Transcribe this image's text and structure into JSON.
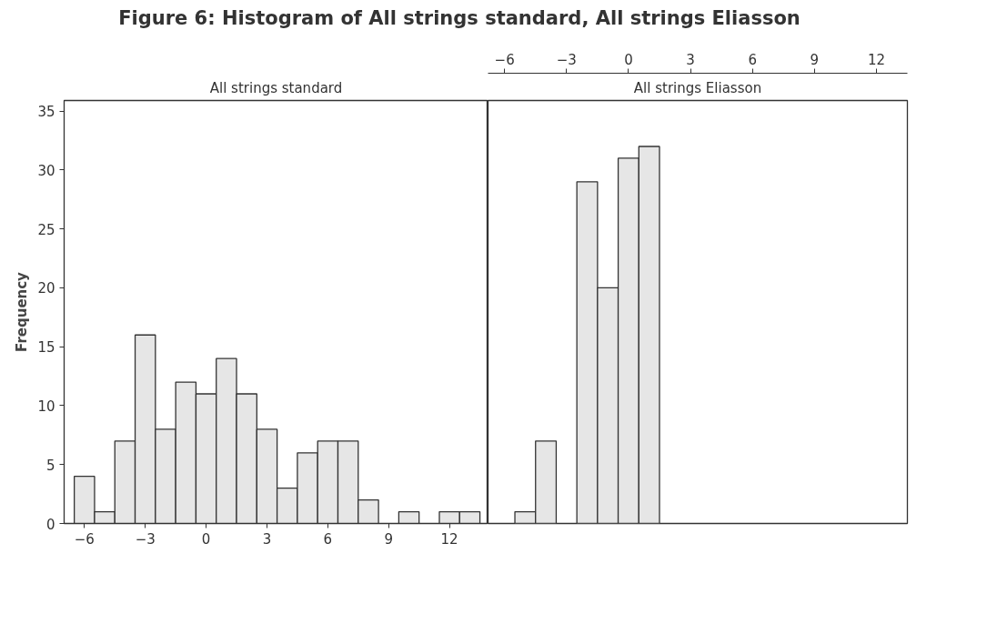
{
  "chart_data": [
    {
      "type": "histogram",
      "title": "Figure 6: Histogram of All strings standard, All strings Eliasson",
      "subtitle": "All strings standard",
      "ylabel": "Frequency",
      "bins": [
        -6.5,
        -5.5,
        -4.5,
        -3.5,
        -2.5,
        -1.5,
        -0.5,
        0.5,
        1.5,
        2.5,
        3.5,
        4.5,
        5.5,
        6.5,
        7.5,
        8.5,
        9.5,
        10.5,
        11.5,
        12.5,
        13.5
      ],
      "values": [
        4,
        1,
        7,
        16,
        8,
        12,
        11,
        14,
        11,
        8,
        3,
        6,
        7,
        7,
        2,
        0,
        1,
        0,
        1,
        1
      ],
      "color": "#e6e6e6",
      "xlim": [
        -7,
        13.9
      ],
      "xticks": [
        -6,
        -3,
        0,
        3,
        6,
        9,
        12
      ],
      "ylim": [
        0,
        35.9
      ],
      "yticks": [
        0,
        5,
        10,
        15,
        20,
        25,
        30,
        35
      ],
      "grid": false
    },
    {
      "type": "histogram",
      "subtitle": "All strings Eliasson",
      "bins": [
        -5.5,
        -4.5,
        -3.5,
        -2.5,
        -1.5,
        -0.5,
        0.5,
        1.5
      ],
      "values": [
        1,
        7,
        0,
        29,
        20,
        31,
        32
      ],
      "color": "#e6e6e6",
      "xlim": [
        -6.8,
        13.5
      ],
      "xticks": [
        -6,
        -3,
        0,
        3,
        6,
        9,
        12
      ],
      "ylim": [
        0,
        35.9
      ],
      "yticks": [
        0,
        5,
        10,
        15,
        20,
        25,
        30,
        35
      ],
      "tick_labels": "x",
      "grid": false
    }
  ]
}
